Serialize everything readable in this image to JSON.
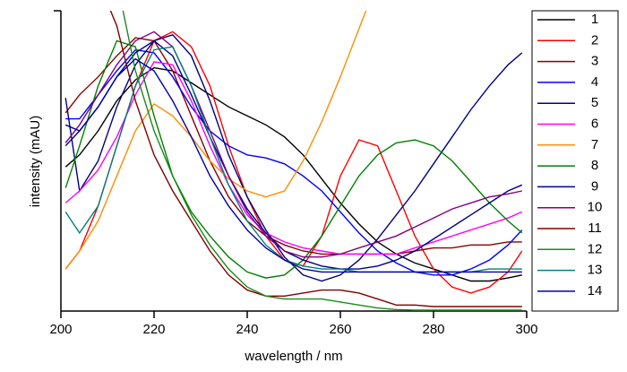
{
  "chart_data": {
    "type": "line",
    "x_label": "wavelength / nm",
    "y_label": "intensity (mAU)",
    "x": [
      201,
      204,
      208,
      212,
      216,
      220,
      224,
      228,
      232,
      236,
      240,
      244,
      248,
      252,
      256,
      260,
      264,
      268,
      272,
      276,
      280,
      284,
      288,
      292,
      296,
      299
    ],
    "xlim": [
      200,
      300
    ],
    "xticks": [
      200,
      220,
      240,
      260,
      280,
      300
    ],
    "ylim": [
      0,
      100
    ],
    "legend": "right",
    "series": [
      {
        "name": "1",
        "color": "#000000",
        "values": [
          48,
          52,
          60,
          70,
          77,
          81,
          80,
          76,
          72,
          68,
          65,
          62,
          58,
          52,
          44,
          36,
          29,
          23,
          19,
          16,
          14,
          12,
          10,
          10,
          11,
          12
        ]
      },
      {
        "name": "2",
        "color": "#ff0000",
        "values": [
          14,
          20,
          35,
          55,
          75,
          90,
          93,
          88,
          75,
          55,
          38,
          25,
          17,
          15,
          25,
          45,
          57,
          55,
          40,
          25,
          14,
          8,
          6,
          8,
          13,
          20
        ]
      },
      {
        "name": "3",
        "color": "#8b0000",
        "values": [
          66,
          72,
          78,
          85,
          91,
          90,
          80,
          65,
          50,
          38,
          30,
          25,
          22,
          20,
          19,
          19,
          19,
          19,
          19,
          20,
          21,
          21,
          22,
          22,
          23,
          23
        ]
      },
      {
        "name": "4",
        "color": "#0000ff",
        "values": [
          64,
          64,
          72,
          80,
          87,
          86,
          78,
          68,
          60,
          55,
          52,
          51,
          49,
          45,
          40,
          33,
          26,
          20,
          16,
          13,
          12,
          12,
          14,
          17,
          22,
          27
        ]
      },
      {
        "name": "5",
        "color": "#000080",
        "values": [
          71,
          40,
          50,
          68,
          82,
          90,
          92,
          85,
          70,
          52,
          38,
          27,
          18,
          12,
          10,
          12,
          17,
          24,
          32,
          40,
          49,
          58,
          67,
          75,
          82,
          86
        ]
      },
      {
        "name": "6",
        "color": "#ff00ff",
        "values": [
          36,
          40,
          47,
          58,
          72,
          83,
          82,
          70,
          55,
          42,
          32,
          26,
          23,
          21,
          20,
          19,
          19,
          19,
          19,
          21,
          23,
          25,
          27,
          29,
          31,
          33
        ]
      },
      {
        "name": "7",
        "color": "#ff8c00",
        "values": [
          14,
          20,
          30,
          45,
          60,
          69,
          65,
          58,
          50,
          44,
          40,
          38,
          40,
          50,
          63,
          78,
          94,
          110,
          null,
          null,
          null,
          null,
          null,
          null,
          null,
          null
        ]
      },
      {
        "name": "8",
        "color": "#008000",
        "values": [
          41,
          55,
          75,
          90,
          88,
          65,
          45,
          33,
          25,
          18,
          13,
          11,
          12,
          17,
          25,
          35,
          45,
          52,
          56,
          57,
          55,
          50,
          43,
          36,
          30,
          26
        ]
      },
      {
        "name": "9",
        "color": "#00008b",
        "values": [
          55,
          60,
          68,
          78,
          86,
          90,
          85,
          72,
          58,
          45,
          34,
          26,
          20,
          17,
          15,
          14,
          14,
          15,
          17,
          20,
          24,
          28,
          32,
          36,
          40,
          42
        ]
      },
      {
        "name": "10",
        "color": "#800080",
        "values": [
          56,
          62,
          72,
          82,
          90,
          93,
          88,
          75,
          60,
          45,
          33,
          25,
          20,
          18,
          18,
          19,
          21,
          23,
          25,
          28,
          31,
          34,
          36,
          38,
          39,
          40
        ]
      },
      {
        "name": "11",
        "color": "#800000",
        "values": [
          null,
          null,
          110,
          95,
          70,
          52,
          40,
          30,
          20,
          12,
          7,
          5,
          5,
          6,
          7,
          7,
          6,
          4,
          2,
          2,
          1.5,
          1.5,
          1.5,
          1.5,
          1.5,
          1.5
        ]
      },
      {
        "name": "12",
        "color": "#1a8a1a",
        "values": [
          null,
          null,
          null,
          110,
          80,
          60,
          45,
          32,
          22,
          14,
          8,
          5,
          4,
          4,
          4,
          3,
          2,
          1,
          0.5,
          0.3,
          0.3,
          0.3,
          0.3,
          0.3,
          0.3,
          0.3
        ]
      },
      {
        "name": "13",
        "color": "#008080",
        "values": [
          33,
          26,
          35,
          55,
          75,
          87,
          88,
          75,
          58,
          42,
          30,
          22,
          17,
          15,
          14,
          14,
          13,
          13,
          13,
          13,
          13,
          13,
          13,
          14,
          14,
          14
        ]
      },
      {
        "name": "14",
        "color": "#0000a0",
        "values": [
          62,
          60,
          68,
          78,
          84,
          80,
          70,
          58,
          45,
          35,
          27,
          21,
          17,
          14,
          13,
          13,
          13,
          13,
          13,
          13,
          13,
          13,
          13,
          13,
          13,
          13
        ]
      }
    ]
  }
}
